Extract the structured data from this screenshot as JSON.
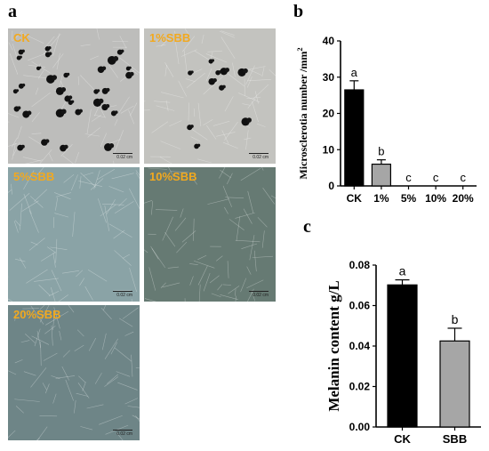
{
  "panels": {
    "a": "a",
    "b": "b",
    "c": "c"
  },
  "micrographs": [
    {
      "label": "CK",
      "scale": "0.02 cm",
      "bg": "#bdbdbb",
      "dots": "many"
    },
    {
      "label": "1%SBB",
      "scale": "0.02 cm",
      "bg": "#c3c3bf",
      "dots": "few"
    },
    {
      "label": "5%SBB",
      "scale": "0.02 cm",
      "bg": "#8aa3a6",
      "dots": "none"
    },
    {
      "label": "10%SBB",
      "scale": "0.02 cm",
      "bg": "#667a73",
      "dots": "none"
    },
    {
      "label": "20%SBB",
      "scale": "0.02 cm",
      "bg": "#6e8587",
      "dots": "none"
    }
  ],
  "chart_data": [
    {
      "type": "bar",
      "panel": "b",
      "categories": [
        "CK",
        "1%",
        "5%",
        "10%",
        "20%"
      ],
      "values": [
        26.5,
        6,
        0,
        0,
        0
      ],
      "errors": [
        2.5,
        1.2,
        0,
        0,
        0
      ],
      "significance": [
        "a",
        "b",
        "c",
        "c",
        "c"
      ],
      "bar_colors": [
        "#000000",
        "#a6a6a6",
        "#a6a6a6",
        "#a6a6a6",
        "#a6a6a6"
      ],
      "ylabel": "Microsclerotia number /mm",
      "ylabel_superscript": "2",
      "ylim": [
        0,
        40
      ],
      "yticks": [
        "0",
        "10",
        "20",
        "30",
        "40"
      ],
      "grid": false
    },
    {
      "type": "bar",
      "panel": "c",
      "categories": [
        "CK",
        "SBB"
      ],
      "values": [
        0.0702,
        0.0425
      ],
      "errors": [
        0.0025,
        0.0063
      ],
      "significance": [
        "a",
        "b"
      ],
      "bar_colors": [
        "#000000",
        "#a6a6a6"
      ],
      "ylabel": "Melanin content g/L",
      "ylim": [
        0,
        0.08
      ],
      "yticks": [
        "0.00",
        "0.02",
        "0.04",
        "0.06",
        "0.08"
      ],
      "grid": false
    }
  ]
}
